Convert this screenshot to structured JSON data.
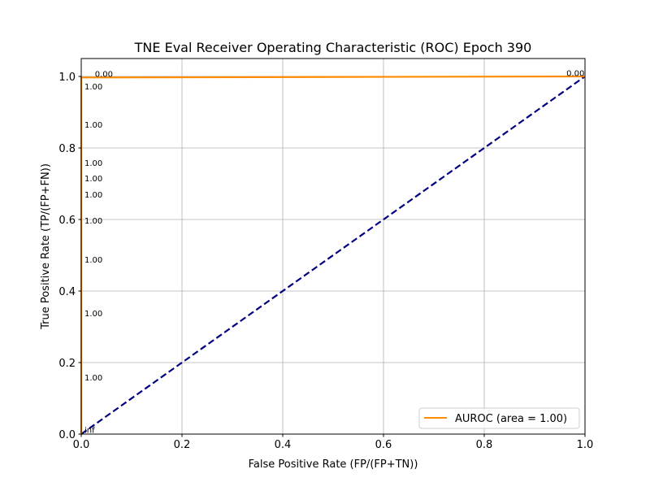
{
  "chart_data": {
    "type": "line",
    "title": "TNE Eval Receiver Operating Characteristic (ROC) Epoch 390",
    "xlabel": "False Positive Rate (FP/(FP+TN))",
    "ylabel": "True Positive Rate (TP/(FP+FN))",
    "xlim": [
      0,
      1
    ],
    "ylim": [
      0,
      1.05
    ],
    "xticks": [
      "0.0",
      "0.2",
      "0.4",
      "0.6",
      "0.8",
      "1.0"
    ],
    "yticks": [
      "0.0",
      "0.2",
      "0.4",
      "0.6",
      "0.8",
      "1.0"
    ],
    "grid": true,
    "legend_placement": "lower-right",
    "series": [
      {
        "name": "AUROC (area = 1.00)",
        "color": "#ff8c00",
        "style": "solid",
        "x": [
          0,
          0,
          0,
          1
        ],
        "y": [
          0,
          0.973,
          0.997,
          1.0
        ]
      },
      {
        "color": "#000080",
        "style": "dashed",
        "x": [
          0,
          1
        ],
        "y": [
          0,
          1
        ]
      }
    ],
    "annotations": [
      {
        "text": "inf",
        "x": -0.024,
        "y": 0.012
      },
      {
        "text": "1.00",
        "x": -0.04,
        "y": 0.159
      },
      {
        "text": "1.00",
        "x": -0.04,
        "y": 0.339
      },
      {
        "text": "1.00",
        "x": -0.04,
        "y": 0.489
      },
      {
        "text": "1.00",
        "x": -0.04,
        "y": 0.598
      },
      {
        "text": "1.00",
        "x": -0.04,
        "y": 0.67
      },
      {
        "text": "1.00",
        "x": -0.04,
        "y": 0.716
      },
      {
        "text": "1.00",
        "x": -0.04,
        "y": 0.759
      },
      {
        "text": "1.00",
        "x": -0.04,
        "y": 0.866
      },
      {
        "text": "1.00",
        "x": -0.04,
        "y": 0.973
      },
      {
        "text": "0.00",
        "x": 0.045,
        "y": 1.008
      },
      {
        "text": "0.00",
        "x": 0.981,
        "y": 1.01
      }
    ]
  }
}
